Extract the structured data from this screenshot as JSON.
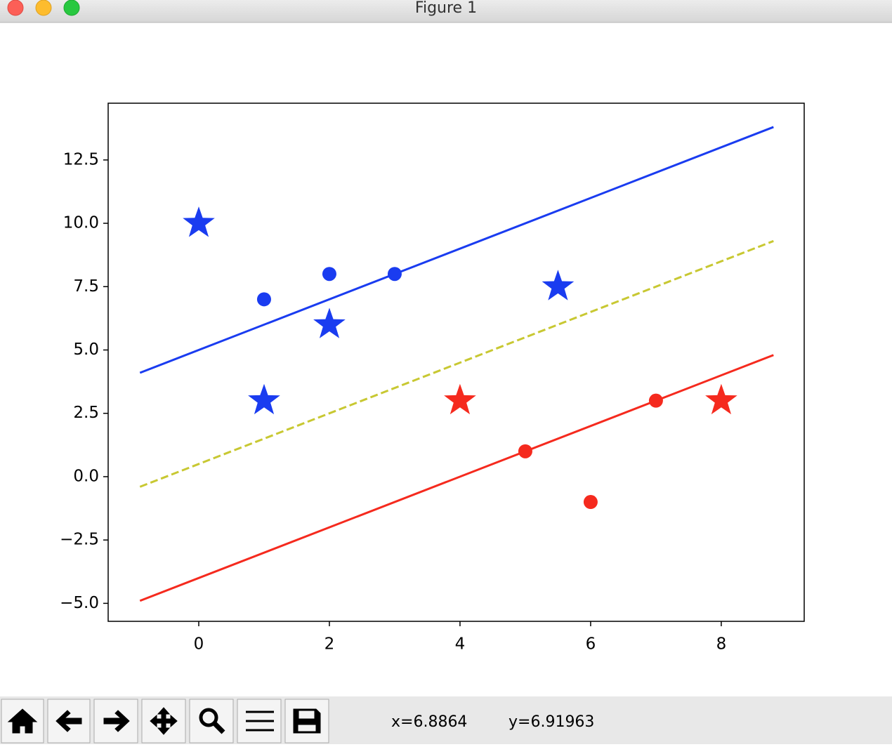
{
  "window": {
    "title": "Figure 1"
  },
  "chart_data": {
    "type": "scatter",
    "xlim": [
      -1.387,
      9.27
    ],
    "ylim": [
      -5.71,
      14.74
    ],
    "xticks": [
      0,
      2,
      4,
      6,
      8
    ],
    "yticks": [
      {
        "value": -5,
        "label": "−5.0"
      },
      {
        "value": -2.5,
        "label": "−2.5"
      },
      {
        "value": 0,
        "label": "0.0"
      },
      2.5,
      {
        "value": 5,
        "label": "5.0"
      },
      7.5,
      {
        "value": 10,
        "label": "10.0"
      },
      12.5
    ],
    "grid": false,
    "series": [
      {
        "style": "star",
        "color": "#1a3cf0",
        "x": [
          0,
          1,
          2,
          5.5
        ],
        "values": [
          10,
          3,
          6,
          7.5
        ]
      },
      {
        "style": "circle",
        "color": "#1a3cf0",
        "x": [
          1,
          2,
          3
        ],
        "values": [
          7,
          8,
          8
        ]
      },
      {
        "style": "star",
        "color": "#f52a1e",
        "x": [
          4,
          8
        ],
        "values": [
          3,
          3
        ]
      },
      {
        "style": "circle",
        "color": "#f52a1e",
        "x": [
          5,
          6,
          7
        ],
        "values": [
          1,
          -1,
          3
        ]
      },
      {
        "style": "solid",
        "color": "#1a3cf0",
        "x": [
          -0.9,
          8.8
        ],
        "values": [
          4.1,
          13.8
        ]
      },
      {
        "style": "dashed",
        "color": "#c8c832",
        "x": [
          -0.9,
          8.8
        ],
        "values": [
          -0.4,
          9.3
        ]
      },
      {
        "style": "solid",
        "color": "#f52a1e",
        "x": [
          -0.9,
          8.8
        ],
        "values": [
          -4.9,
          4.8
        ]
      }
    ]
  },
  "status": {
    "x": "x=6.8864",
    "y": "y=6.91963"
  }
}
